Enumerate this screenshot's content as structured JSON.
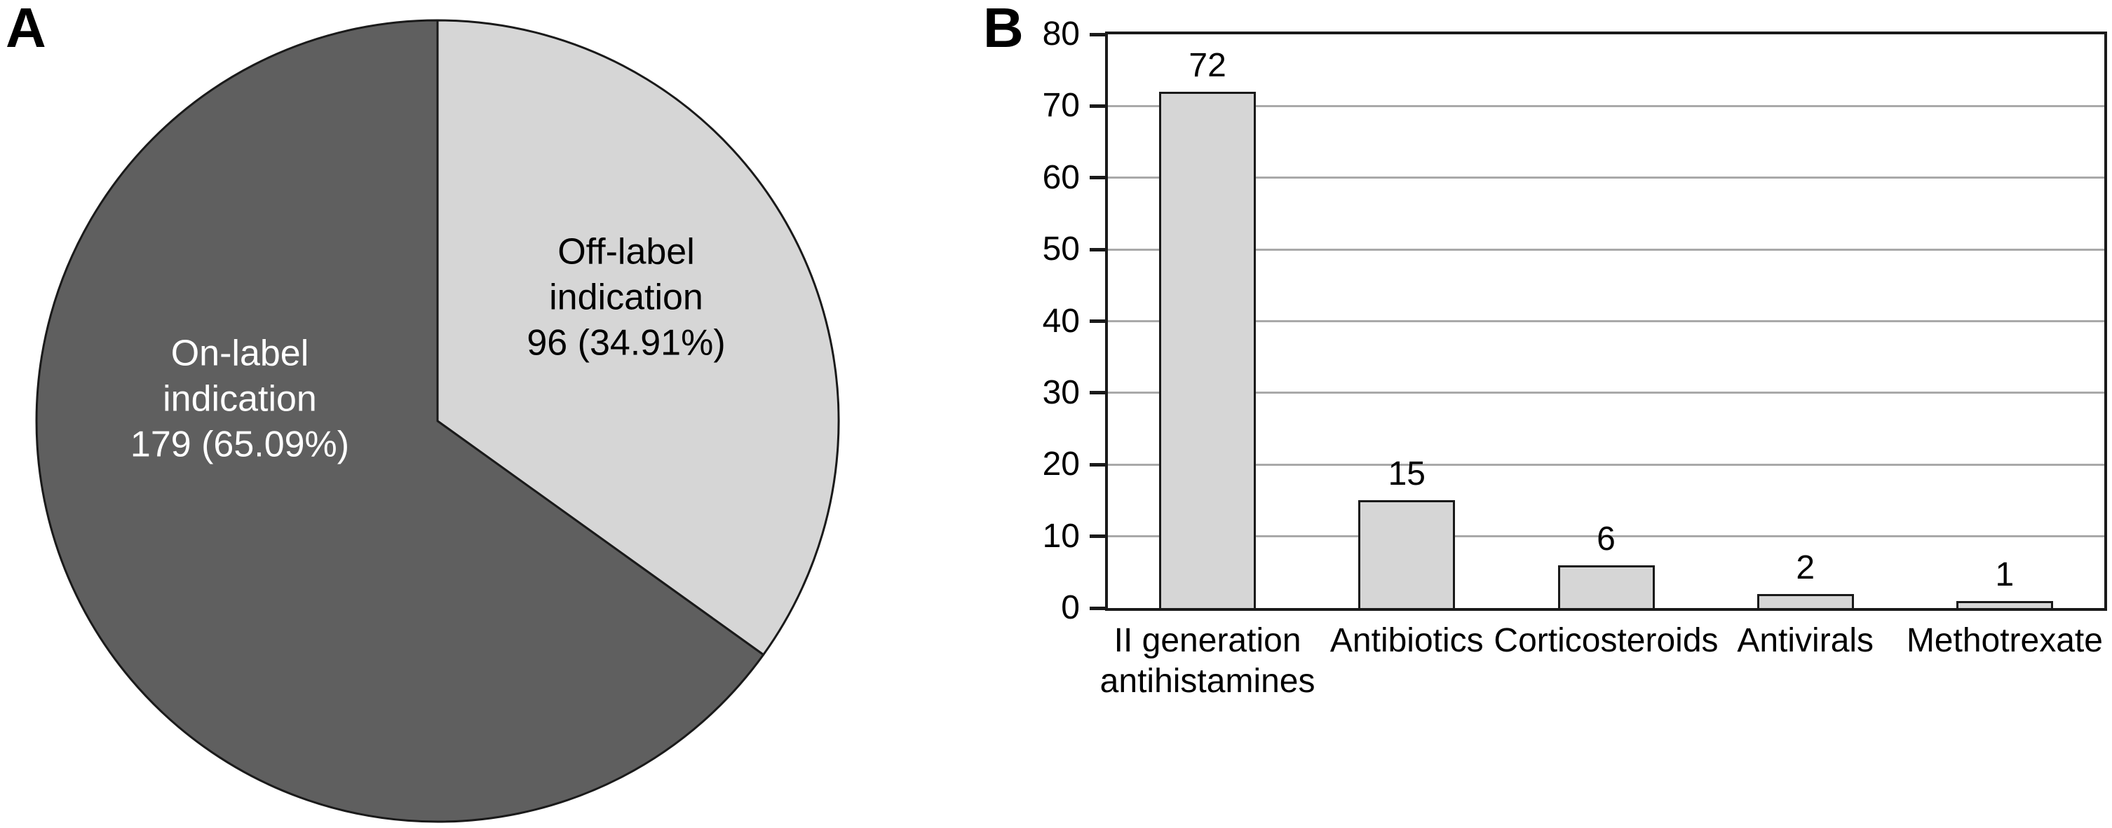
{
  "panels": {
    "a": "A",
    "b": "B"
  },
  "colors": {
    "outline": "#1a1a1a",
    "dark_slice": "#5f5f5f",
    "light_slice": "#d6d6d6",
    "bar_fill": "#d6d6d6",
    "gridline": "#a9a9a9",
    "text_on_dark": "#ffffff",
    "text_on_light": "#000000"
  },
  "chart_data": [
    {
      "type": "pie",
      "panel": "A",
      "slices": [
        {
          "id": "off_label",
          "label": "Off-label indication",
          "value": 96,
          "percent": 34.91,
          "display": "Off-label\nindication\n96 (34.91%)",
          "color": "#d6d6d6",
          "text_color": "#000000"
        },
        {
          "id": "on_label",
          "label": "On-label indication",
          "value": 179,
          "percent": 65.09,
          "display": "On-label\nindication\n179 (65.09%)",
          "color": "#5f5f5f",
          "text_color": "#ffffff"
        }
      ],
      "start_angle_deg": 0,
      "direction": "clockwise"
    },
    {
      "type": "bar",
      "panel": "B",
      "categories": [
        "II generation\nantihistamines",
        "Antibiotics",
        "Corticosteroids",
        "Antivirals",
        "Methotrexate"
      ],
      "values": [
        72,
        15,
        6,
        2,
        1
      ],
      "value_labels": [
        "72",
        "15",
        "6",
        "2",
        "1"
      ],
      "title": "",
      "xlabel": "",
      "ylabel": "",
      "ylim": [
        0,
        80
      ],
      "yticks": [
        0,
        10,
        20,
        30,
        40,
        50,
        60,
        70,
        80
      ],
      "grid": "horizontal",
      "legend": "none"
    }
  ]
}
